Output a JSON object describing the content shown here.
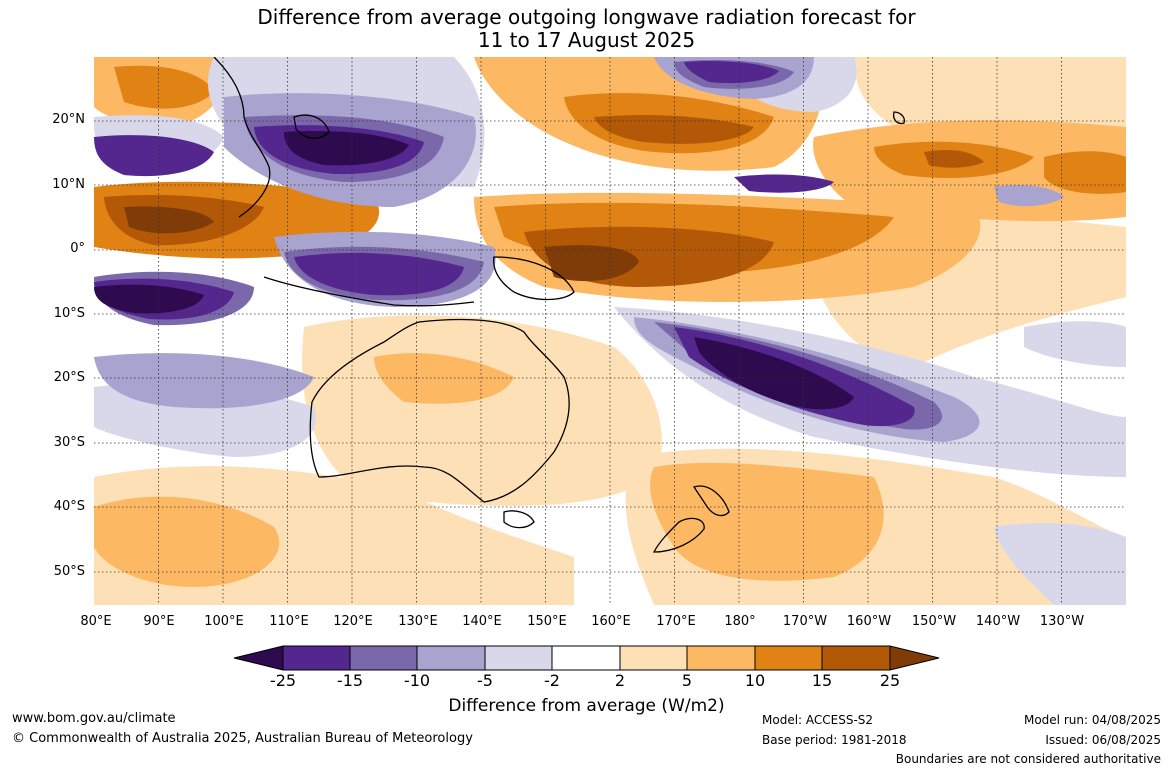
{
  "title": {
    "line1": "Difference from average outgoing longwave radiation forecast for",
    "line2": "11 to 17 August 2025"
  },
  "map": {
    "lat_labels": [
      "20°N",
      "10°N",
      "0°",
      "10°S",
      "20°S",
      "30°S",
      "40°S",
      "50°S"
    ],
    "lon_labels": [
      "80°E",
      "90°E",
      "100°E",
      "110°E",
      "120°E",
      "130°E",
      "140°E",
      "150°E",
      "160°E",
      "170°E",
      "180°",
      "170°W",
      "160°W",
      "150°W",
      "140°W",
      "130°W"
    ],
    "gridlines": "dotted"
  },
  "colorbar": {
    "ticks": [
      "-25",
      "-15",
      "-10",
      "-5",
      "-2",
      "2",
      "5",
      "10",
      "15",
      "25"
    ],
    "colors": [
      "#2d0b4e",
      "#54278f",
      "#7b68ab",
      "#a9a3cf",
      "#d9d8ea",
      "#ffffff",
      "#fee0b6",
      "#fdb863",
      "#e08214",
      "#b35806",
      "#7f3b08"
    ],
    "title": "Difference from average (W/m2)"
  },
  "footer": {
    "url": "www.bom.gov.au/climate",
    "copyright": "© Commonwealth of Australia 2025, Australian Bureau of Meteorology",
    "model": "Model: ACCESS-S2",
    "base_period": "Base period: 1981-2018",
    "model_run": "Model run: 04/08/2025",
    "issued": "Issued: 06/08/2025",
    "disclaimer": "Boundaries are not considered authoritative"
  }
}
